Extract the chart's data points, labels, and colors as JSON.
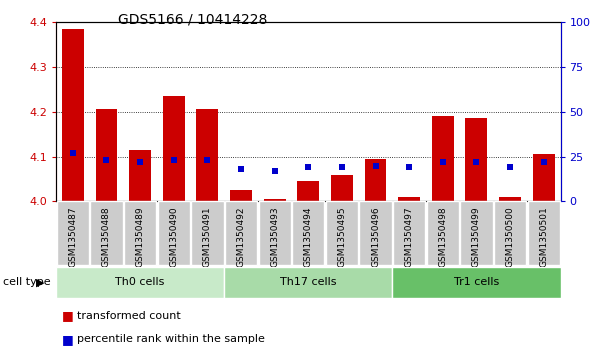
{
  "title": "GDS5166 / 10414228",
  "samples": [
    "GSM1350487",
    "GSM1350488",
    "GSM1350489",
    "GSM1350490",
    "GSM1350491",
    "GSM1350492",
    "GSM1350493",
    "GSM1350494",
    "GSM1350495",
    "GSM1350496",
    "GSM1350497",
    "GSM1350498",
    "GSM1350499",
    "GSM1350500",
    "GSM1350501"
  ],
  "transformed_count": [
    4.385,
    4.205,
    4.115,
    4.235,
    4.205,
    4.025,
    4.005,
    4.045,
    4.06,
    4.095,
    4.01,
    4.19,
    4.185,
    4.01,
    4.105
  ],
  "percentile_rank": [
    27,
    23,
    22,
    23,
    23,
    18,
    17,
    19,
    19,
    20,
    19,
    22,
    22,
    19,
    22
  ],
  "cell_groups": [
    {
      "label": "Th0 cells",
      "start": 0,
      "end": 4,
      "color": "#c8eac9"
    },
    {
      "label": "Th17 cells",
      "start": 5,
      "end": 9,
      "color": "#a8dba8"
    },
    {
      "label": "Tr1 cells",
      "start": 10,
      "end": 14,
      "color": "#68c068"
    }
  ],
  "bar_color": "#cc0000",
  "dot_color": "#0000cc",
  "left_ylim": [
    4.0,
    4.4
  ],
  "right_ylim": [
    0,
    100
  ],
  "left_yticks": [
    4.0,
    4.1,
    4.2,
    4.3,
    4.4
  ],
  "right_yticks": [
    0,
    25,
    50,
    75,
    100
  ],
  "right_yticklabels": [
    "0",
    "25",
    "50",
    "75",
    "100%"
  ],
  "axis_color_left": "#cc0000",
  "axis_color_right": "#0000cc",
  "tick_bg_color": "#cccccc",
  "legend_items": [
    {
      "label": "transformed count",
      "color": "#cc0000"
    },
    {
      "label": "percentile rank within the sample",
      "color": "#0000cc"
    }
  ],
  "cell_type_label": "cell type"
}
